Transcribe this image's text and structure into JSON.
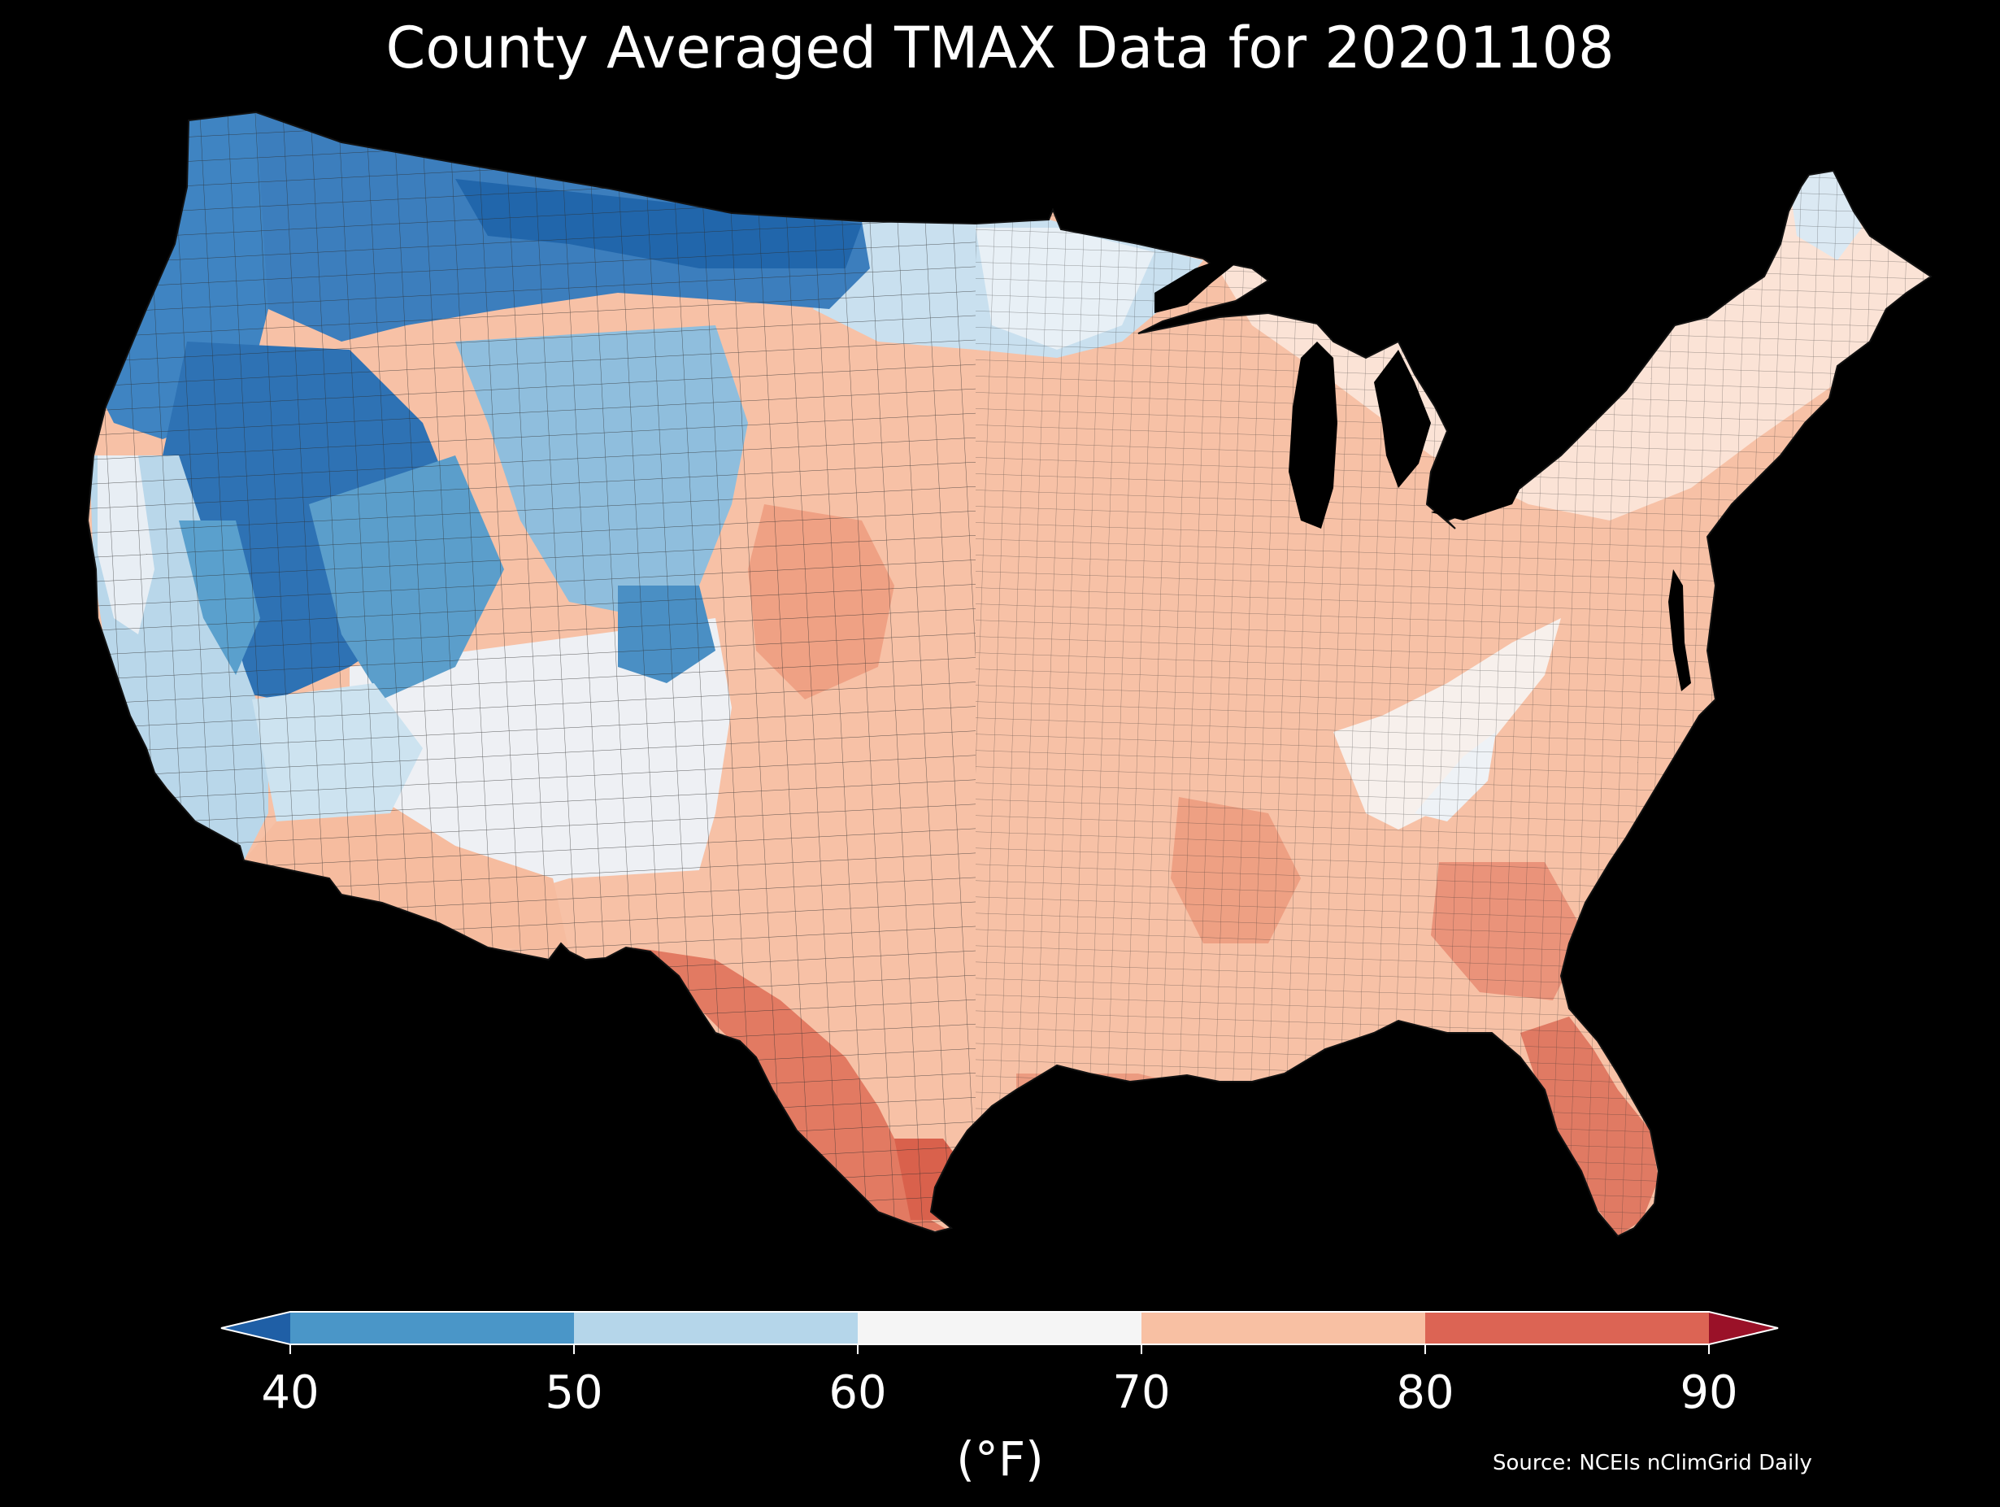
{
  "title": "County Averaged TMAX Data for 20201108",
  "map": {
    "region": "Contiguous United States (counties)",
    "variable": "TMAX",
    "date": "20201108",
    "color_regions": [
      {
        "name": "pacific-northwest",
        "bin": "40"
      },
      {
        "name": "northern-rockies",
        "bin": "40"
      },
      {
        "name": "great-basin",
        "bin": "40-50"
      },
      {
        "name": "california-coast",
        "bin": "50-60"
      },
      {
        "name": "northern-plains",
        "bin": "50-60"
      },
      {
        "name": "southwest-interior",
        "bin": "60-70"
      },
      {
        "name": "southern-plains",
        "bin": "70-80"
      },
      {
        "name": "midwest",
        "bin": "70-80"
      },
      {
        "name": "northeast",
        "bin": "60-70"
      },
      {
        "name": "appalachians",
        "bin": "60-70"
      },
      {
        "name": "southeast",
        "bin": "70-80"
      },
      {
        "name": "south-texas",
        "bin": "80-90"
      },
      {
        "name": "florida",
        "bin": "80-90"
      }
    ]
  },
  "colorbar": {
    "ticks": [
      "40",
      "50",
      "60",
      "70",
      "80",
      "90"
    ],
    "bins": [
      {
        "range": "<40",
        "color": "#1f5fa6"
      },
      {
        "range": "40-50",
        "color": "#4a96c8"
      },
      {
        "range": "50-60",
        "color": "#b5d6ea"
      },
      {
        "range": "60-70",
        "color": "#f5f5f5"
      },
      {
        "range": "70-80",
        "color": "#f8c0a3"
      },
      {
        "range": "80-90",
        "color": "#dc6454"
      },
      {
        "range": ">90",
        "color": "#9a1128"
      }
    ],
    "unit": "(°F)"
  },
  "source": "Source: NCEIs nClimGrid Daily",
  "colors": {
    "background": "#000000",
    "text": "#ffffff",
    "county_border": "#222222"
  }
}
